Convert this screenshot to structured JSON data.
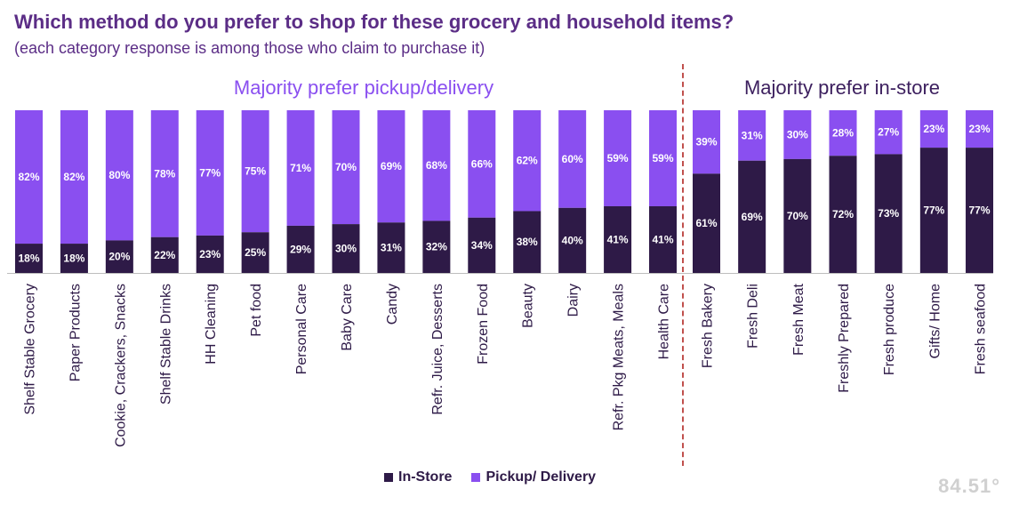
{
  "title": "Which method do you prefer to shop for these grocery and household items?",
  "subtitle": "(each category response is among those who claim to purchase it)",
  "logo_text": "84.51°",
  "chart_data": {
    "type": "bar",
    "stacked": true,
    "groups": [
      {
        "title": "Majority prefer pickup/delivery",
        "count": 15
      },
      {
        "title": "Majority prefer in-store",
        "count": 7
      }
    ],
    "categories": [
      "Shelf Stable Grocery",
      "Paper Products",
      "Cookie, Crackers, Snacks",
      "Shelf Stable Drinks",
      "HH Cleaning",
      "Pet food",
      "Personal Care",
      "Baby Care",
      "Candy",
      "Refr. Juice, Desserts",
      "Frozen Food",
      "Beauty",
      "Dairy",
      "Refr. Pkg Meats, Meals",
      "Health Care",
      "Fresh Bakery",
      "Fresh Deli",
      "Fresh Meat",
      "Freshly Prepared",
      "Fresh produce",
      "Gifts/ Home",
      "Fresh seafood"
    ],
    "series": [
      {
        "name": "In-Store",
        "color": "#2e1a47",
        "values": [
          18,
          18,
          20,
          22,
          23,
          25,
          29,
          30,
          31,
          32,
          34,
          38,
          40,
          41,
          41,
          61,
          69,
          70,
          72,
          73,
          77,
          77
        ],
        "labels": [
          "18%",
          "18%",
          "20%",
          "22%",
          "23%",
          "25%",
          "29%",
          "30%",
          "31%",
          "32%",
          "34%",
          "38%",
          "40%",
          "41%",
          "41%",
          "61%",
          "69%",
          "70%",
          "72%",
          "73%",
          "77%",
          "77%"
        ]
      },
      {
        "name": "Pickup/ Delivery",
        "color": "#8a4ff0",
        "values": [
          82,
          82,
          80,
          78,
          77,
          75,
          71,
          70,
          69,
          68,
          66,
          62,
          60,
          59,
          59,
          39,
          31,
          30,
          28,
          27,
          23,
          23
        ],
        "labels": [
          "82%",
          "82%",
          "80%",
          "78%",
          "77%",
          "75%",
          "71%",
          "70%",
          "69%",
          "68%",
          "66%",
          "62%",
          "60%",
          "59%",
          "59%",
          "39%",
          "31%",
          "30%",
          "28%",
          "27%",
          "23%",
          "23%"
        ]
      }
    ],
    "ylim": [
      0,
      100
    ],
    "legend_position": "bottom-center"
  }
}
